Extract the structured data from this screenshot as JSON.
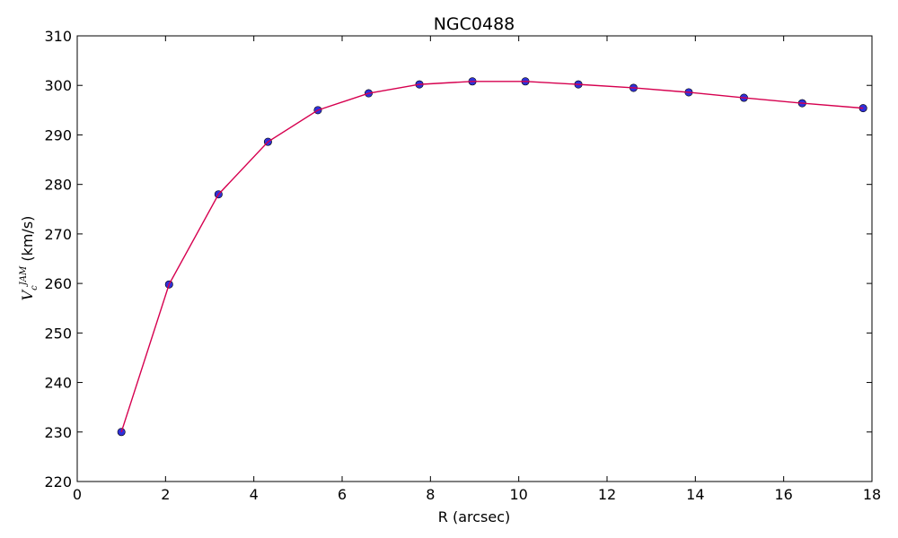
{
  "chart_data": {
    "type": "line",
    "title": "NGC0488",
    "xlabel": "R (arcsec)",
    "ylabel_main": "V",
    "ylabel_sub": "c",
    "ylabel_sup": "JAM",
    "ylabel_unit": " (km/s)",
    "xlim": [
      0,
      18
    ],
    "ylim": [
      220,
      310
    ],
    "xticks": [
      "0",
      "2",
      "4",
      "6",
      "8",
      "10",
      "12",
      "14",
      "16",
      "18"
    ],
    "yticks": [
      "220",
      "230",
      "240",
      "250",
      "260",
      "270",
      "280",
      "290",
      "300",
      "310"
    ],
    "grid": false,
    "line_color": "#d6004f",
    "marker_color": "#3030d8",
    "series": [
      {
        "x": [
          1.0,
          2.08,
          3.2,
          4.32,
          5.45,
          6.6,
          7.75,
          8.95,
          10.15,
          11.35,
          12.6,
          13.85,
          15.1,
          16.42,
          17.8
        ],
        "y": [
          230.0,
          259.8,
          278.0,
          288.6,
          295.0,
          298.4,
          300.2,
          300.8,
          300.8,
          300.2,
          299.5,
          298.6,
          297.5,
          296.4,
          295.4
        ]
      }
    ]
  }
}
